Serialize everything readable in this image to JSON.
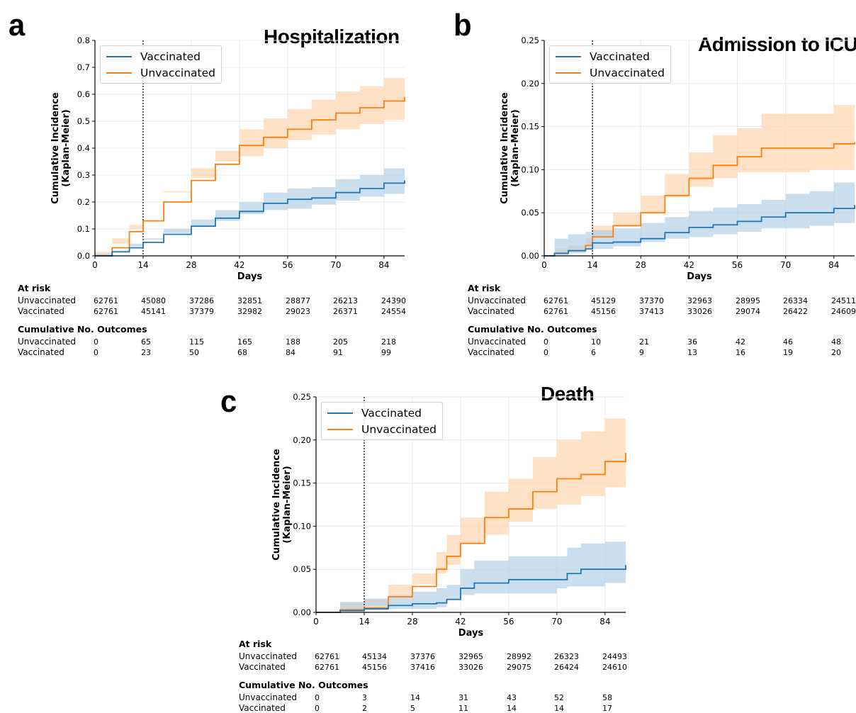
{
  "colors": {
    "vaccinated": "#1f77b4",
    "unvaccinated": "#ff7f0e",
    "vacc_band": "#aecde5",
    "unvacc_band": "#ffd7b3"
  },
  "panels": [
    {
      "letter": "a",
      "title": "Hospitalization",
      "legend": [
        "Vaccinated",
        "Unvaccinated"
      ],
      "table": {
        "at_risk_title": "At risk",
        "outcomes_title": "Cumulative No. Outcomes",
        "row_labels": [
          "Unvaccinated",
          "Vaccinated"
        ],
        "at_risk": [
          [
            "62761",
            "45080",
            "37286",
            "32851",
            "28877",
            "26213",
            "24390"
          ],
          [
            "62761",
            "45141",
            "37379",
            "32982",
            "29023",
            "26371",
            "24554"
          ]
        ],
        "outcomes": [
          [
            "0",
            "65",
            "115",
            "165",
            "188",
            "205",
            "218"
          ],
          [
            "0",
            "23",
            "50",
            "68",
            "84",
            "91",
            "99"
          ]
        ]
      }
    },
    {
      "letter": "b",
      "title": "Admission to ICU",
      "legend": [
        "Vaccinated",
        "Unvaccinated"
      ],
      "table": {
        "at_risk_title": "At risk",
        "outcomes_title": "Cumulative No. Outcomes",
        "row_labels": [
          "Unvaccinated",
          "Vaccinated"
        ],
        "at_risk": [
          [
            "62761",
            "45129",
            "37370",
            "32963",
            "28995",
            "26334",
            "24511"
          ],
          [
            "62761",
            "45156",
            "37413",
            "33026",
            "29074",
            "26422",
            "24609"
          ]
        ],
        "outcomes": [
          [
            "0",
            "10",
            "21",
            "36",
            "42",
            "46",
            "48"
          ],
          [
            "0",
            "6",
            "9",
            "13",
            "16",
            "19",
            "20"
          ]
        ]
      }
    },
    {
      "letter": "c",
      "title": "Death",
      "legend": [
        "Vaccinated",
        "Unvaccinated"
      ],
      "table": {
        "at_risk_title": "At risk",
        "outcomes_title": "Cumulative No. Outcomes",
        "row_labels": [
          "Unvaccinated",
          "Vaccinated"
        ],
        "at_risk": [
          [
            "62761",
            "45134",
            "37376",
            "32965",
            "28992",
            "26323",
            "24493"
          ],
          [
            "62761",
            "45156",
            "37416",
            "33026",
            "29075",
            "26424",
            "24610"
          ]
        ],
        "outcomes": [
          [
            "0",
            "3",
            "14",
            "31",
            "43",
            "52",
            "58"
          ],
          [
            "0",
            "2",
            "5",
            "11",
            "14",
            "14",
            "17"
          ]
        ]
      }
    }
  ],
  "chart_data": [
    {
      "type": "line",
      "title": "Hospitalization",
      "xlabel": "Days",
      "ylabel": "Cumulative Incidence\n(Kaplan-Meier)",
      "xlim": [
        0,
        90
      ],
      "ylim": [
        0,
        0.8
      ],
      "xticks": [
        0,
        14,
        28,
        42,
        56,
        70,
        84
      ],
      "yticks": [
        0.0,
        0.1,
        0.2,
        0.3,
        0.4,
        0.5,
        0.6,
        0.7,
        0.8
      ],
      "ytick_labels": [
        "0.0",
        "0.1",
        "0.2",
        "0.3",
        "0.4",
        "0.5",
        "0.6",
        "0.7",
        "0.8"
      ],
      "reference_line_x": 14,
      "grid": true,
      "legend_position": "top-left",
      "series": [
        {
          "name": "Vaccinated",
          "x": [
            0,
            5,
            10,
            14,
            20,
            28,
            35,
            42,
            49,
            56,
            63,
            70,
            77,
            84,
            90
          ],
          "values": [
            0,
            0.015,
            0.03,
            0.05,
            0.08,
            0.11,
            0.14,
            0.165,
            0.195,
            0.21,
            0.215,
            0.235,
            0.25,
            0.27,
            0.28
          ],
          "lower": [
            0,
            0.008,
            0.02,
            0.035,
            0.06,
            0.085,
            0.11,
            0.13,
            0.155,
            0.17,
            0.175,
            0.19,
            0.205,
            0.22,
            0.23
          ],
          "upper": [
            0,
            0.022,
            0.045,
            0.065,
            0.1,
            0.135,
            0.17,
            0.2,
            0.235,
            0.25,
            0.255,
            0.285,
            0.3,
            0.325,
            0.345
          ]
        },
        {
          "name": "Unvaccinated",
          "x": [
            0,
            5,
            10,
            14,
            20,
            28,
            35,
            42,
            49,
            56,
            63,
            70,
            77,
            84,
            90
          ],
          "values": [
            0,
            0.03,
            0.09,
            0.13,
            0.2,
            0.28,
            0.34,
            0.41,
            0.44,
            0.47,
            0.505,
            0.53,
            0.55,
            0.575,
            0.59
          ],
          "lower": [
            0,
            0.015,
            0.065,
            0.1,
            0.16,
            0.235,
            0.29,
            0.35,
            0.37,
            0.4,
            0.43,
            0.45,
            0.47,
            0.49,
            0.505
          ],
          "upper": [
            0,
            0.045,
            0.115,
            0.16,
            0.24,
            0.325,
            0.39,
            0.47,
            0.51,
            0.545,
            0.58,
            0.61,
            0.63,
            0.66,
            0.68
          ]
        }
      ]
    },
    {
      "type": "line",
      "title": "Admission to ICU",
      "xlabel": "Days",
      "ylabel": "Cumulative Incidence\n(Kaplan-Meier)",
      "xlim": [
        0,
        90
      ],
      "ylim": [
        0,
        0.25
      ],
      "xticks": [
        0,
        14,
        28,
        42,
        56,
        70,
        84
      ],
      "yticks": [
        0.0,
        0.05,
        0.1,
        0.15,
        0.2,
        0.25
      ],
      "ytick_labels": [
        "0.00",
        "0.05",
        "0.10",
        "0.15",
        "0.20",
        "0.25"
      ],
      "reference_line_x": 14,
      "grid": true,
      "legend_position": "top-left",
      "series": [
        {
          "name": "Vaccinated",
          "x": [
            0,
            3,
            7,
            12,
            14,
            20,
            28,
            35,
            42,
            49,
            56,
            63,
            70,
            77,
            84,
            90
          ],
          "values": [
            0,
            0.003,
            0.006,
            0.008,
            0.015,
            0.016,
            0.02,
            0.027,
            0.033,
            0.036,
            0.04,
            0.045,
            0.05,
            0.05,
            0.055,
            0.059
          ],
          "lower": [
            0,
            0,
            0.001,
            0.003,
            0.008,
            0.008,
            0.011,
            0.016,
            0.02,
            0.022,
            0.025,
            0.028,
            0.032,
            0.032,
            0.035,
            0.038
          ],
          "upper": [
            0,
            0.02,
            0.025,
            0.028,
            0.03,
            0.032,
            0.038,
            0.045,
            0.052,
            0.056,
            0.06,
            0.065,
            0.072,
            0.075,
            0.085,
            0.092
          ]
        },
        {
          "name": "Unvaccinated",
          "x": [
            0,
            3,
            7,
            12,
            14,
            20,
            28,
            35,
            42,
            49,
            56,
            63,
            70,
            77,
            84,
            90
          ],
          "values": [
            0,
            0.003,
            0.006,
            0.012,
            0.022,
            0.035,
            0.05,
            0.07,
            0.09,
            0.105,
            0.115,
            0.125,
            0.125,
            0.125,
            0.13,
            0.132
          ],
          "lower": [
            0,
            0,
            0.002,
            0.006,
            0.012,
            0.022,
            0.035,
            0.05,
            0.068,
            0.08,
            0.09,
            0.097,
            0.097,
            0.097,
            0.1,
            0.1
          ],
          "upper": [
            0,
            0.008,
            0.012,
            0.02,
            0.035,
            0.05,
            0.07,
            0.095,
            0.12,
            0.14,
            0.148,
            0.165,
            0.165,
            0.165,
            0.175,
            0.177
          ]
        }
      ]
    },
    {
      "type": "line",
      "title": "Death",
      "xlabel": "Days",
      "ylabel": "Cumulative Incidence\n(Kaplan-Meier)",
      "xlim": [
        0,
        90
      ],
      "ylim": [
        0,
        0.25
      ],
      "xticks": [
        0,
        14,
        28,
        42,
        56,
        70,
        84
      ],
      "yticks": [
        0.0,
        0.05,
        0.1,
        0.15,
        0.2,
        0.25
      ],
      "ytick_labels": [
        "0.00",
        "0.05",
        "0.10",
        "0.15",
        "0.20",
        "0.25"
      ],
      "reference_line_x": 14,
      "grid": true,
      "legend_position": "top-left",
      "series": [
        {
          "name": "Vaccinated",
          "x": [
            0,
            7,
            14,
            21,
            28,
            35,
            38,
            42,
            46,
            56,
            63,
            70,
            73,
            77,
            84,
            90
          ],
          "values": [
            0,
            0.002,
            0.004,
            0.008,
            0.01,
            0.011,
            0.015,
            0.028,
            0.034,
            0.038,
            0.038,
            0.038,
            0.045,
            0.05,
            0.05,
            0.055
          ],
          "lower": [
            0,
            0,
            0.001,
            0.003,
            0.004,
            0.004,
            0.006,
            0.015,
            0.02,
            0.022,
            0.022,
            0.022,
            0.028,
            0.03,
            0.03,
            0.034
          ],
          "upper": [
            0,
            0.012,
            0.016,
            0.02,
            0.024,
            0.028,
            0.032,
            0.05,
            0.06,
            0.065,
            0.065,
            0.065,
            0.075,
            0.08,
            0.082,
            0.088
          ]
        },
        {
          "name": "Unvaccinated",
          "x": [
            0,
            7,
            14,
            21,
            28,
            35,
            38,
            42,
            49,
            56,
            63,
            70,
            77,
            84,
            90
          ],
          "values": [
            0,
            0.003,
            0.005,
            0.018,
            0.03,
            0.05,
            0.065,
            0.08,
            0.11,
            0.12,
            0.14,
            0.155,
            0.16,
            0.175,
            0.185
          ],
          "lower": [
            0,
            0,
            0.001,
            0.008,
            0.018,
            0.033,
            0.045,
            0.055,
            0.08,
            0.09,
            0.105,
            0.12,
            0.125,
            0.135,
            0.145
          ],
          "upper": [
            0,
            0.012,
            0.015,
            0.032,
            0.045,
            0.07,
            0.09,
            0.11,
            0.14,
            0.155,
            0.18,
            0.2,
            0.21,
            0.225,
            0.24
          ]
        }
      ]
    }
  ]
}
